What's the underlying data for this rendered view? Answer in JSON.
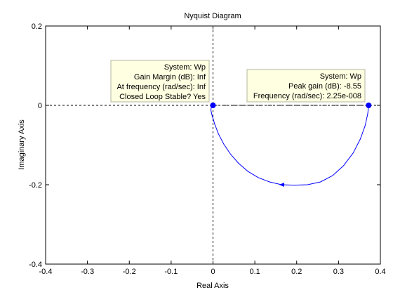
{
  "chart_data": {
    "type": "line",
    "title": "Nyquist Diagram",
    "xlabel": "Real Axis",
    "ylabel": "Imaginary Axis",
    "xlim": [
      -0.4,
      0.4
    ],
    "ylim": [
      -0.4,
      0.2
    ],
    "xticks": [
      "-0.4",
      "-0.3",
      "-0.2",
      "-0.1",
      "0",
      "0.1",
      "0.2",
      "0.3",
      "0.4"
    ],
    "yticks": [
      "-0.4",
      "-0.2",
      "0",
      "0.2"
    ],
    "xtick_values": [
      -0.4,
      -0.3,
      -0.2,
      -0.1,
      0,
      0.1,
      0.2,
      0.3,
      0.4
    ],
    "ytick_values": [
      -0.4,
      -0.2,
      0,
      0.2
    ],
    "grid": false,
    "series": [
      {
        "color": "#0000ff",
        "x": [
          0.372,
          0.37,
          0.364,
          0.352,
          0.335,
          0.312,
          0.286,
          0.257,
          0.226,
          0.194,
          0.164,
          0.135,
          0.108,
          0.083,
          0.061,
          0.042,
          0.026,
          0.013,
          0.004,
          -0.002,
          -0.005,
          -0.004,
          0.0
        ],
        "y": [
          0.0,
          -0.02,
          -0.05,
          -0.085,
          -0.12,
          -0.152,
          -0.177,
          -0.193,
          -0.2,
          -0.201,
          -0.2,
          -0.193,
          -0.182,
          -0.166,
          -0.146,
          -0.123,
          -0.098,
          -0.072,
          -0.047,
          -0.026,
          -0.012,
          -0.004,
          0.0
        ]
      }
    ],
    "arrow": {
      "x": 0.165,
      "y": -0.2
    },
    "dashdot_segment": {
      "x": [
        0.0,
        0.372
      ],
      "y": [
        0.0,
        0.0
      ]
    },
    "markers": [
      {
        "name": "gain-margin-point",
        "x": 0.0,
        "y": 0.0
      },
      {
        "name": "peak-gain-point",
        "x": 0.372,
        "y": 0.0
      }
    ],
    "annotations": [
      {
        "name": "gain-margin-datatip",
        "lines": [
          "System: Wp",
          "Gain Margin (dB): Inf",
          "At frequency (rad/sec): Inf",
          "Closed Loop Stable? Yes"
        ]
      },
      {
        "name": "peak-gain-datatip",
        "lines": [
          "System: Wp",
          "Peak gain (dB): -8.55",
          "Frequency (rad/sec): 2.25e-008"
        ]
      }
    ],
    "colors": {
      "curve": "#0000ff",
      "marker": "#0000ff",
      "datatip_bg": "#ffffe1",
      "datatip_border": "#b4b4a0"
    }
  }
}
